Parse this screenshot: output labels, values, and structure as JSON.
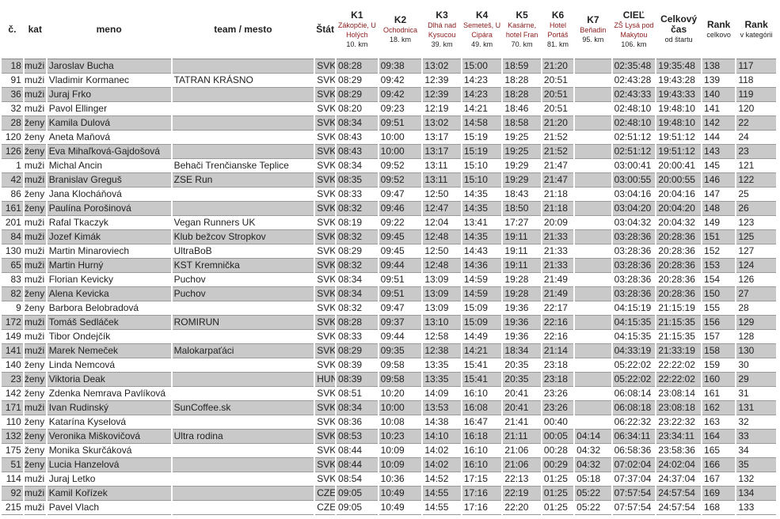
{
  "table": {
    "columns": [
      {
        "label": "č."
      },
      {
        "label": "kat"
      },
      {
        "label": "meno"
      },
      {
        "label": "team / mesto"
      },
      {
        "label": "Štát"
      },
      {
        "label": "K1",
        "place": "Zákopčie, U Holých",
        "km": "10. km"
      },
      {
        "label": "K2",
        "place": "Ochodnica",
        "km": "18. km"
      },
      {
        "label": "K3",
        "place": "Dlhá nad Kysucou",
        "km": "39. km"
      },
      {
        "label": "K4",
        "place": "Semeteš, U Cipára",
        "km": "49. km"
      },
      {
        "label": "K5",
        "place": "Kasárne, hotel Fran",
        "km": "70. km"
      },
      {
        "label": "K6",
        "place": "Hotel Portáš",
        "km": "81. km"
      },
      {
        "label": "K7",
        "place": "Beňadin",
        "km": "95. km"
      },
      {
        "label": "CIEĽ",
        "place": "ZŠ Lysá pod Makytou",
        "km": "106. km"
      },
      {
        "label": "Celkový čas",
        "sub": "od štartu"
      },
      {
        "label": "Rank",
        "sub": "celkovo"
      },
      {
        "label": "Rank",
        "sub": "v kategórii"
      }
    ],
    "rows": [
      [
        18,
        "muži",
        "Jaroslav Bucha",
        null,
        "SVK",
        "08:28",
        "09:38",
        "13:02",
        "15:00",
        "18:59",
        "21:20",
        null,
        "02:35:48",
        "19:35:48",
        138,
        117
      ],
      [
        91,
        "muži",
        "Vladimir Kormanec",
        "TATRAN KRÁSNO",
        "SVK",
        "08:29",
        "09:42",
        "12:39",
        "14:23",
        "18:28",
        "20:51",
        null,
        "02:43:28",
        "19:43:28",
        139,
        118
      ],
      [
        36,
        "muži",
        "Juraj Frko",
        null,
        "SVK",
        "08:29",
        "09:42",
        "12:39",
        "14:23",
        "18:28",
        "20:51",
        null,
        "02:43:33",
        "19:43:33",
        140,
        119
      ],
      [
        32,
        "muži",
        "Pavol Ellinger",
        null,
        "SVK",
        "08:20",
        "09:23",
        "12:19",
        "14:21",
        "18:46",
        "20:51",
        null,
        "02:48:10",
        "19:48:10",
        141,
        120
      ],
      [
        28,
        "ženy",
        "Kamila Dulová",
        null,
        "SVK",
        "08:34",
        "09:51",
        "13:02",
        "14:58",
        "18:58",
        "21:20",
        null,
        "02:48:10",
        "19:48:10",
        142,
        22
      ],
      [
        120,
        "ženy",
        "Aneta Maňová",
        null,
        "SVK",
        "08:43",
        "10:00",
        "13:17",
        "15:19",
        "19:25",
        "21:52",
        null,
        "02:51:12",
        "19:51:12",
        144,
        24
      ],
      [
        126,
        "ženy",
        "Eva Mihaľková-Gajdošová",
        null,
        "SVK",
        "08:43",
        "10:00",
        "13:17",
        "15:19",
        "19:25",
        "21:52",
        null,
        "02:51:12",
        "19:51:12",
        143,
        23
      ],
      [
        1,
        "muži",
        "Michal Ancin",
        "Behači Trenčianske Teplice",
        "SVK",
        "08:34",
        "09:52",
        "13:11",
        "15:10",
        "19:29",
        "21:47",
        null,
        "03:00:41",
        "20:00:41",
        145,
        121
      ],
      [
        42,
        "muži",
        "Branislav Greguš",
        "ZSE Run",
        "SVK",
        "08:35",
        "09:52",
        "13:11",
        "15:10",
        "19:29",
        "21:47",
        null,
        "03:00:55",
        "20:00:55",
        146,
        122
      ],
      [
        86,
        "ženy",
        "Jana Klocháňová",
        null,
        "SVK",
        "08:33",
        "09:47",
        "12:50",
        "14:35",
        "18:43",
        "21:18",
        null,
        "03:04:16",
        "20:04:16",
        147,
        25
      ],
      [
        161,
        "ženy",
        "Paulína Porošinová",
        null,
        "SVK",
        "08:32",
        "09:46",
        "12:47",
        "14:35",
        "18:50",
        "21:18",
        null,
        "03:04:20",
        "20:04:20",
        148,
        26
      ],
      [
        201,
        "muži",
        "Rafal Tkaczyk",
        "Vegan Runners UK",
        "SVK",
        "08:19",
        "09:22",
        "12:04",
        "13:41",
        "17:27",
        "20:09",
        null,
        "03:04:32",
        "20:04:32",
        149,
        123
      ],
      [
        84,
        "muži",
        "Jozef Kimák",
        "Klub bežcov Stropkov",
        "SVK",
        "08:32",
        "09:45",
        "12:48",
        "14:35",
        "19:11",
        "21:33",
        null,
        "03:28:36",
        "20:28:36",
        151,
        125
      ],
      [
        130,
        "muži",
        "Martin Minaroviech",
        "UltraBoB",
        "SVK",
        "08:29",
        "09:45",
        "12:50",
        "14:43",
        "19:11",
        "21:33",
        null,
        "03:28:36",
        "20:28:36",
        152,
        127
      ],
      [
        65,
        "muži",
        "Martin Hurný",
        "KST Kremnička",
        "SVK",
        "08:32",
        "09:44",
        "12:48",
        "14:36",
        "19:11",
        "21:33",
        null,
        "03:28:36",
        "20:28:36",
        153,
        124
      ],
      [
        83,
        "muži",
        "Florian Kevicky",
        "Puchov",
        "SVK",
        "08:34",
        "09:51",
        "13:09",
        "14:59",
        "19:28",
        "21:49",
        null,
        "03:28:36",
        "20:28:36",
        154,
        126
      ],
      [
        82,
        "ženy",
        "Alena Kevicka",
        "Puchov",
        "SVK",
        "08:34",
        "09:51",
        "13:09",
        "14:59",
        "19:28",
        "21:49",
        null,
        "03:28:36",
        "20:28:36",
        150,
        27
      ],
      [
        9,
        "ženy",
        "Barbora Belobradová",
        null,
        "SVK",
        "08:32",
        "09:47",
        "13:09",
        "15:09",
        "19:36",
        "22:17",
        null,
        "04:15:19",
        "21:15:19",
        155,
        28
      ],
      [
        172,
        "muži",
        "Tomáš Sedláček",
        "ROMIRUN",
        "SVK",
        "08:28",
        "09:37",
        "13:10",
        "15:09",
        "19:36",
        "22:16",
        null,
        "04:15:35",
        "21:15:35",
        156,
        129
      ],
      [
        149,
        "muži",
        "Tibor Ondejčík",
        null,
        "SVK",
        "08:33",
        "09:44",
        "12:58",
        "14:49",
        "19:36",
        "22:16",
        null,
        "04:15:35",
        "21:15:35",
        157,
        128
      ],
      [
        141,
        "muži",
        "Marek Nemeček",
        "Malokarpaťáci",
        "SVK",
        "08:29",
        "09:35",
        "12:38",
        "14:21",
        "18:34",
        "21:14",
        null,
        "04:33:19",
        "21:33:19",
        158,
        130
      ],
      [
        140,
        "ženy",
        "Linda Nemcová",
        null,
        "SVK",
        "08:39",
        "09:58",
        "13:35",
        "15:41",
        "20:35",
        "23:18",
        null,
        "05:22:02",
        "22:22:02",
        159,
        30
      ],
      [
        23,
        "ženy",
        "Viktoria Deak",
        null,
        "HUN",
        "08:39",
        "09:58",
        "13:35",
        "15:41",
        "20:35",
        "23:18",
        null,
        "05:22:02",
        "22:22:02",
        160,
        29
      ],
      [
        142,
        "ženy",
        "Zdenka Nemrava Pavlíková",
        null,
        "SVK",
        "08:51",
        "10:20",
        "14:09",
        "16:10",
        "20:41",
        "23:26",
        null,
        "06:08:14",
        "23:08:14",
        161,
        31
      ],
      [
        171,
        "muži",
        "Ivan Rudinský",
        "SunCoffee.sk",
        "SVK",
        "08:34",
        "10:00",
        "13:53",
        "16:08",
        "20:41",
        "23:26",
        null,
        "06:08:18",
        "23:08:18",
        162,
        131
      ],
      [
        110,
        "ženy",
        "Katarína Kyselová",
        null,
        "SVK",
        "08:36",
        "10:08",
        "14:38",
        "16:47",
        "21:41",
        "00:40",
        null,
        "06:22:32",
        "23:22:32",
        163,
        32
      ],
      [
        132,
        "ženy",
        "Veronika Miškovičová",
        "Ultra rodina",
        "SVK",
        "08:53",
        "10:23",
        "14:10",
        "16:18",
        "21:11",
        "00:05",
        "04:14",
        "06:34:11",
        "23:34:11",
        164,
        33
      ],
      [
        175,
        "ženy",
        "Monika Skurčáková",
        null,
        "SVK",
        "08:44",
        "10:09",
        "14:02",
        "16:10",
        "21:06",
        "00:28",
        "04:32",
        "06:58:36",
        "23:58:36",
        165,
        34
      ],
      [
        51,
        "ženy",
        "Lucia Hanzelová",
        null,
        "SVK",
        "08:44",
        "10:09",
        "14:02",
        "16:10",
        "21:06",
        "00:29",
        "04:32",
        "07:02:04",
        "24:02:04",
        166,
        35
      ],
      [
        114,
        "muži",
        "Juraj Letko",
        null,
        "SVK",
        "08:54",
        "10:36",
        "14:52",
        "17:15",
        "22:13",
        "01:25",
        "05:18",
        "07:37:04",
        "24:37:04",
        167,
        132
      ],
      [
        92,
        "muži",
        "Kamil Kořízek",
        null,
        "CZE",
        "09:05",
        "10:49",
        "14:55",
        "17:16",
        "22:19",
        "01:25",
        "05:22",
        "07:57:54",
        "24:57:54",
        169,
        134
      ],
      [
        215,
        "muži",
        "Pavel Vlach",
        null,
        "CZE",
        "09:05",
        "10:49",
        "14:55",
        "17:16",
        "22:20",
        "01:25",
        "05:22",
        "07:57:54",
        "24:57:54",
        168,
        133
      ]
    ]
  }
}
